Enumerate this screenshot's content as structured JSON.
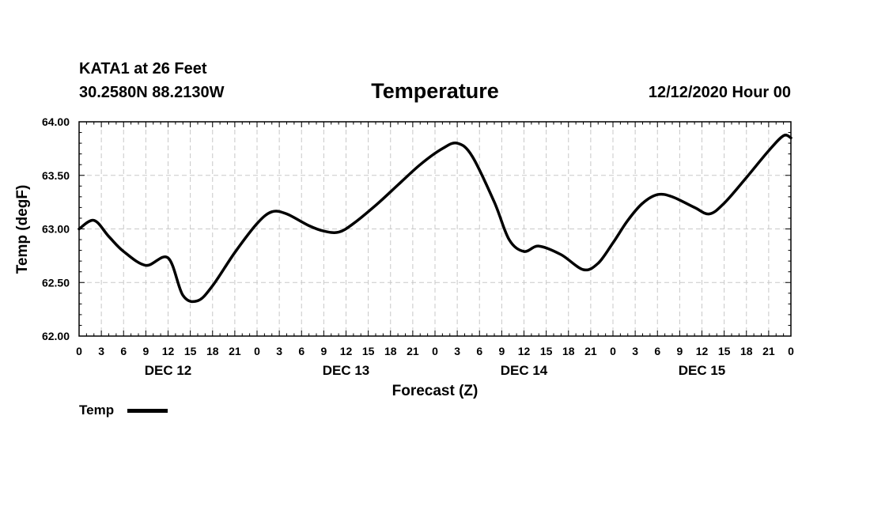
{
  "header": {
    "station": "KATA1 at 26 Feet",
    "coordinates": "30.2580N 88.2130W",
    "run_time": "12/12/2020 Hour 00"
  },
  "legend": {
    "label": "Temp",
    "color": "#000000"
  },
  "chart_data": {
    "type": "line",
    "title": "Temperature",
    "xlabel": "Forecast (Z)",
    "ylabel": "Temp (degF)",
    "ylim": [
      62.0,
      64.0
    ],
    "yticks": [
      "62.00",
      "62.50",
      "63.00",
      "63.50",
      "64.00"
    ],
    "xlim_hours": [
      0,
      96
    ],
    "x_tick_labels": [
      "0",
      "3",
      "6",
      "9",
      "12",
      "15",
      "18",
      "21",
      "0",
      "3",
      "6",
      "9",
      "12",
      "15",
      "18",
      "21",
      "0",
      "3",
      "6",
      "9",
      "12",
      "15",
      "18",
      "21",
      "0",
      "3",
      "6",
      "9",
      "12",
      "15",
      "18",
      "21",
      "0"
    ],
    "day_labels": [
      {
        "label": "DEC 12",
        "center_hour": 12
      },
      {
        "label": "DEC 13",
        "center_hour": 36
      },
      {
        "label": "DEC 14",
        "center_hour": 60
      },
      {
        "label": "DEC 15",
        "center_hour": 84
      }
    ],
    "grid": true,
    "series": [
      {
        "name": "Temp",
        "color": "#000000",
        "points": [
          [
            0,
            63.0
          ],
          [
            2,
            63.08
          ],
          [
            4,
            62.93
          ],
          [
            6,
            62.79
          ],
          [
            9,
            62.66
          ],
          [
            12,
            62.73
          ],
          [
            14,
            62.38
          ],
          [
            16,
            62.33
          ],
          [
            18,
            62.47
          ],
          [
            21,
            62.78
          ],
          [
            24,
            63.05
          ],
          [
            26,
            63.16
          ],
          [
            28,
            63.14
          ],
          [
            31,
            63.03
          ],
          [
            33,
            62.98
          ],
          [
            35,
            62.97
          ],
          [
            37,
            63.05
          ],
          [
            40,
            63.22
          ],
          [
            43,
            63.41
          ],
          [
            46,
            63.6
          ],
          [
            49,
            63.75
          ],
          [
            51,
            63.8
          ],
          [
            53,
            63.68
          ],
          [
            56,
            63.25
          ],
          [
            58,
            62.9
          ],
          [
            60,
            62.79
          ],
          [
            62,
            62.84
          ],
          [
            65,
            62.76
          ],
          [
            68,
            62.62
          ],
          [
            70,
            62.68
          ],
          [
            72,
            62.87
          ],
          [
            74,
            63.08
          ],
          [
            76,
            63.24
          ],
          [
            78,
            63.32
          ],
          [
            80,
            63.3
          ],
          [
            83,
            63.2
          ],
          [
            85,
            63.14
          ],
          [
            87,
            63.24
          ],
          [
            90,
            63.48
          ],
          [
            93,
            63.73
          ],
          [
            95,
            63.87
          ],
          [
            96,
            63.85
          ]
        ]
      }
    ]
  }
}
